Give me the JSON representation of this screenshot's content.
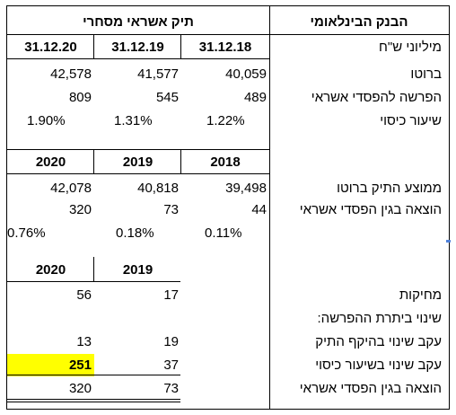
{
  "sheet": {
    "top_header": {
      "bank_title": "הבנק הבינלאומי",
      "portfolio_title": "תיק אשראי מסחרי"
    },
    "dates": [
      "31.12.20",
      "31.12.19",
      "31.12.18"
    ],
    "units_label": "מיליוני ש\"ח",
    "rows_a": [
      {
        "label": "ברוטו",
        "values": [
          "42,578",
          "41,577",
          "40,059"
        ]
      },
      {
        "label": "הפרשה להפסדי אשראי",
        "values": [
          "809",
          "545",
          "489"
        ]
      },
      {
        "label": "שיעור כיסוי",
        "values": [
          "1.90%",
          "1.31%",
          "1.22%"
        ]
      }
    ],
    "years_b": [
      "2020",
      "2019",
      "2018"
    ],
    "rows_b": [
      {
        "label": "ממוצע התיק ברוטו",
        "values": [
          "42,078",
          "40,818",
          "39,498"
        ]
      },
      {
        "label": "הוצאה בגין הפסדי אשראי",
        "values": [
          "320",
          "73",
          "44"
        ]
      },
      {
        "label": "",
        "values": [
          "0.76%",
          "0.18%",
          "0.11%"
        ]
      }
    ],
    "years_c": [
      "2020",
      "2019"
    ],
    "rows_c": [
      {
        "label": "מחיקות",
        "values": [
          "56",
          "17"
        ]
      },
      {
        "label": "שינוי ביתרת ההפרשה:",
        "values": [
          "",
          ""
        ]
      },
      {
        "label": "עקב שינוי בהיקף התיק",
        "values": [
          "13",
          "19"
        ]
      },
      {
        "label": "עקב שינוי בשיעור כיסוי",
        "values": [
          "251",
          "37"
        ]
      },
      {
        "label": "הוצאה בגין הפסדי אשראי",
        "values": [
          "320",
          "73"
        ]
      }
    ],
    "highlight_color": "#ffff00"
  }
}
